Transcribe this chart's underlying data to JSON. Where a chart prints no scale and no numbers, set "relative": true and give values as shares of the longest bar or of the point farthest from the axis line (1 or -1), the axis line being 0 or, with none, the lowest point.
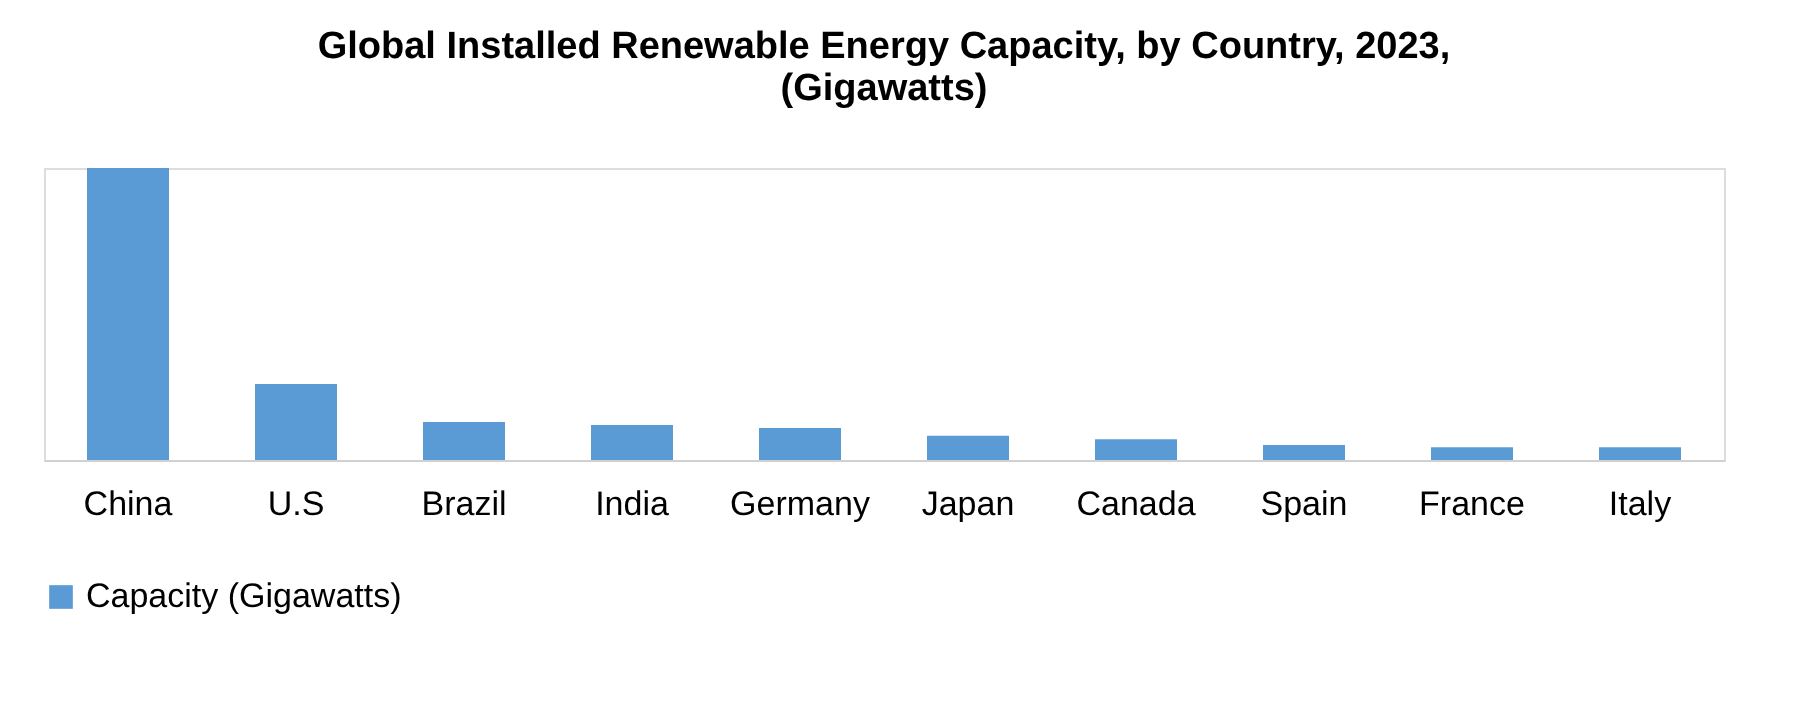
{
  "chart_data": {
    "type": "bar",
    "title": [
      "Global Installed Renewable Energy Capacity, by Country, 2023,",
      "(Gigawatts)"
    ],
    "relative": true,
    "categories": [
      "China",
      "U.S",
      "Brazil",
      "India",
      "Germany",
      "Japan",
      "Canada",
      "Spain",
      "France",
      "Italy"
    ],
    "series": [
      {
        "name": "Capacity (Gigawatts)",
        "color": "#5b9bd5",
        "values": [
          1,
          0.26,
          0.13,
          0.12,
          0.11,
          0.083,
          0.071,
          0.051,
          0.044,
          0.044
        ]
      }
    ],
    "grid": false,
    "legend": "bottom"
  }
}
